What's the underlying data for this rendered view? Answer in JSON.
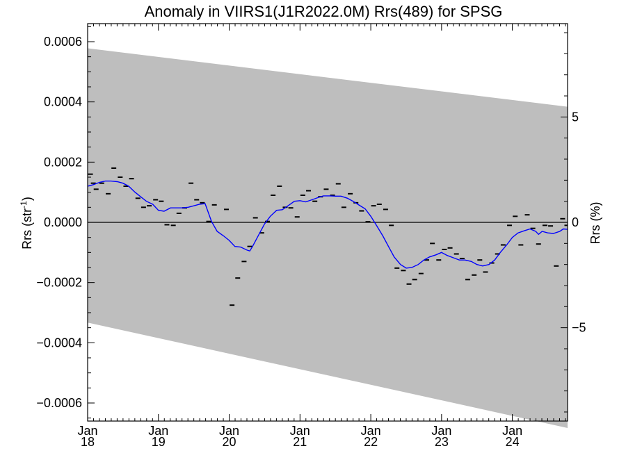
{
  "chart_data": {
    "type": "scatter",
    "title": "Anomaly in VIIRS1(J1R2022.0M) Rrs(489) for SPSG",
    "ylabel_main": "Rrs (str",
    "ylabel_sup": "-1",
    "ylabel_close": ")",
    "ylabel_right": "Rrs (%)",
    "xlim": [
      2018.0,
      2024.78
    ],
    "ylim": [
      -0.00066,
      0.00066
    ],
    "y2lim": [
      -9.43,
      9.43
    ],
    "y_ticks": [
      {
        "value": 0.0006,
        "label": "0.0006"
      },
      {
        "value": 0.0004,
        "label": "0.0004"
      },
      {
        "value": 0.0002,
        "label": "0.0002"
      },
      {
        "value": 0.0,
        "label": "0.0000"
      },
      {
        "value": -0.0002,
        "label": "−0.0002"
      },
      {
        "value": -0.0004,
        "label": "−0.0004"
      },
      {
        "value": -0.0006,
        "label": "−0.0006"
      }
    ],
    "y2_ticks": [
      {
        "value": 5,
        "label": "5"
      },
      {
        "value": 0,
        "label": "0"
      },
      {
        "value": -5,
        "label": "−5"
      }
    ],
    "x_ticks": [
      {
        "value": 2018,
        "month": "Jan",
        "year": "18"
      },
      {
        "value": 2019,
        "month": "Jan",
        "year": "19"
      },
      {
        "value": 2020,
        "month": "Jan",
        "year": "20"
      },
      {
        "value": 2021,
        "month": "Jan",
        "year": "21"
      },
      {
        "value": 2022,
        "month": "Jan",
        "year": "22"
      },
      {
        "value": 2023,
        "month": "Jan",
        "year": "23"
      },
      {
        "value": 2024,
        "month": "Jan",
        "year": "24"
      }
    ],
    "band": {
      "x": [
        2018.0,
        2024.78
      ],
      "upper": [
        0.000578,
        0.000384
      ],
      "lower": [
        -0.000333,
        -0.000683
      ]
    },
    "zero_line": 0.0,
    "series": [
      {
        "type": "points",
        "color": "#000000",
        "points": [
          [
            2018.04,
            0.00016
          ],
          [
            2018.08,
            0.00013
          ],
          [
            2018.12,
            0.00011
          ],
          [
            2018.2,
            0.00013
          ],
          [
            2018.29,
            9.5e-05
          ],
          [
            2018.37,
            0.00018
          ],
          [
            2018.46,
            0.00015
          ],
          [
            2018.54,
            0.00012
          ],
          [
            2018.62,
            0.000145
          ],
          [
            2018.71,
            8e-05
          ],
          [
            2018.79,
            5e-05
          ],
          [
            2018.87,
            5.5e-05
          ],
          [
            2018.96,
            7.5e-05
          ],
          [
            2019.04,
            7e-05
          ],
          [
            2019.12,
            -8e-06
          ],
          [
            2019.21,
            -1e-05
          ],
          [
            2019.29,
            3e-05
          ],
          [
            2019.37,
            4.8e-05
          ],
          [
            2019.46,
            0.00013
          ],
          [
            2019.54,
            7.5e-05
          ],
          [
            2019.62,
            6.5e-05
          ],
          [
            2019.71,
            3e-06
          ],
          [
            2019.79,
            5.8e-05
          ],
          [
            2019.96,
            4.3e-05
          ],
          [
            2020.04,
            -0.000275
          ],
          [
            2020.12,
            -0.000185
          ],
          [
            2020.21,
            -0.00013
          ],
          [
            2020.29,
            -8e-05
          ],
          [
            2020.37,
            1.5e-05
          ],
          [
            2020.46,
            -3.5e-05
          ],
          [
            2020.54,
            3e-06
          ],
          [
            2020.62,
            9e-05
          ],
          [
            2020.71,
            0.00012
          ],
          [
            2020.79,
            5e-05
          ],
          [
            2020.87,
            4.8e-05
          ],
          [
            2020.96,
            1.8e-05
          ],
          [
            2021.04,
            9e-05
          ],
          [
            2021.12,
            0.000105
          ],
          [
            2021.21,
            7e-05
          ],
          [
            2021.29,
            8.5e-05
          ],
          [
            2021.37,
            0.00011
          ],
          [
            2021.46,
            9e-05
          ],
          [
            2021.54,
            0.000128
          ],
          [
            2021.62,
            5e-05
          ],
          [
            2021.71,
            9.5e-05
          ],
          [
            2021.79,
            6.5e-05
          ],
          [
            2021.87,
            3.8e-05
          ],
          [
            2021.96,
            2e-06
          ],
          [
            2022.04,
            5.5e-05
          ],
          [
            2022.12,
            6e-05
          ],
          [
            2022.21,
            4.3e-05
          ],
          [
            2022.29,
            -1e-05
          ],
          [
            2022.37,
            -0.000152
          ],
          [
            2022.46,
            -0.00016
          ],
          [
            2022.54,
            -0.000205
          ],
          [
            2022.62,
            -0.00019
          ],
          [
            2022.71,
            -0.00017
          ],
          [
            2022.79,
            -0.000125
          ],
          [
            2022.87,
            -7e-05
          ],
          [
            2022.96,
            -0.000125
          ],
          [
            2023.04,
            -9e-05
          ],
          [
            2023.12,
            -8.5e-05
          ],
          [
            2023.21,
            -0.000105
          ],
          [
            2023.29,
            -0.00012
          ],
          [
            2023.37,
            -0.00019
          ],
          [
            2023.46,
            -0.000175
          ],
          [
            2023.54,
            -0.000125
          ],
          [
            2023.62,
            -0.000165
          ],
          [
            2023.71,
            -0.000135
          ],
          [
            2023.79,
            -0.000105
          ],
          [
            2023.87,
            -7.5e-05
          ],
          [
            2023.96,
            -1e-05
          ],
          [
            2024.04,
            2e-05
          ],
          [
            2024.12,
            -7.5e-05
          ],
          [
            2024.21,
            2.5e-05
          ],
          [
            2024.29,
            -2e-05
          ],
          [
            2024.37,
            -7.2e-05
          ],
          [
            2024.46,
            -1e-05
          ],
          [
            2024.54,
            -1.2e-05
          ],
          [
            2024.62,
            -0.000145
          ],
          [
            2024.71,
            1.2e-05
          ],
          [
            2024.77,
            -1e-05
          ]
        ]
      },
      {
        "type": "line",
        "color": "#0000ff",
        "points": [
          [
            2018.0,
            0.00012
          ],
          [
            2018.08,
            0.000125
          ],
          [
            2018.17,
            0.000133
          ],
          [
            2018.25,
            0.000137
          ],
          [
            2018.33,
            0.000137
          ],
          [
            2018.42,
            0.000135
          ],
          [
            2018.5,
            0.00013
          ],
          [
            2018.58,
            0.00012
          ],
          [
            2018.67,
            0.0001
          ],
          [
            2018.75,
            8.5e-05
          ],
          [
            2018.83,
            7e-05
          ],
          [
            2018.92,
            6e-05
          ],
          [
            2019.0,
            4e-05
          ],
          [
            2019.08,
            3.7e-05
          ],
          [
            2019.17,
            4.8e-05
          ],
          [
            2019.25,
            4.8e-05
          ],
          [
            2019.33,
            4.8e-05
          ],
          [
            2019.42,
            5e-05
          ],
          [
            2019.5,
            5.5e-05
          ],
          [
            2019.58,
            6e-05
          ],
          [
            2019.66,
            6.2e-05
          ],
          [
            2019.75,
            3e-06
          ],
          [
            2019.83,
            -3e-05
          ],
          [
            2019.92,
            -4.5e-05
          ],
          [
            2020.0,
            -6e-05
          ],
          [
            2020.08,
            -8e-05
          ],
          [
            2020.16,
            -8.2e-05
          ],
          [
            2020.25,
            -9.2e-05
          ],
          [
            2020.29,
            -9.5e-05
          ],
          [
            2020.33,
            -8e-05
          ],
          [
            2020.42,
            -4e-05
          ],
          [
            2020.5,
            -5e-06
          ],
          [
            2020.58,
            2e-05
          ],
          [
            2020.67,
            4e-05
          ],
          [
            2020.75,
            4.2e-05
          ],
          [
            2020.83,
            5.5e-05
          ],
          [
            2020.92,
            7e-05
          ],
          [
            2021.0,
            7.2e-05
          ],
          [
            2021.08,
            6.8e-05
          ],
          [
            2021.17,
            7.5e-05
          ],
          [
            2021.25,
            8.2e-05
          ],
          [
            2021.33,
            8.8e-05
          ],
          [
            2021.42,
            8.8e-05
          ],
          [
            2021.5,
            8.7e-05
          ],
          [
            2021.58,
            8.7e-05
          ],
          [
            2021.67,
            8e-05
          ],
          [
            2021.75,
            7e-05
          ],
          [
            2021.83,
            5.8e-05
          ],
          [
            2021.92,
            4.5e-05
          ],
          [
            2022.0,
            2e-05
          ],
          [
            2022.08,
            -1e-05
          ],
          [
            2022.17,
            -4.5e-05
          ],
          [
            2022.25,
            -8e-05
          ],
          [
            2022.33,
            -0.000115
          ],
          [
            2022.42,
            -0.00014
          ],
          [
            2022.5,
            -0.000152
          ],
          [
            2022.58,
            -0.00015
          ],
          [
            2022.67,
            -0.00014
          ],
          [
            2022.75,
            -0.000125
          ],
          [
            2022.83,
            -0.000115
          ],
          [
            2022.92,
            -0.000108
          ],
          [
            2023.0,
            -0.0001
          ],
          [
            2023.08,
            -0.00011
          ],
          [
            2023.17,
            -0.000118
          ],
          [
            2023.25,
            -0.000125
          ],
          [
            2023.33,
            -0.000125
          ],
          [
            2023.42,
            -0.00013
          ],
          [
            2023.5,
            -0.00014
          ],
          [
            2023.58,
            -0.000145
          ],
          [
            2023.67,
            -0.00014
          ],
          [
            2023.75,
            -0.000125
          ],
          [
            2023.83,
            -0.0001
          ],
          [
            2023.92,
            -7.5e-05
          ],
          [
            2024.0,
            -5e-05
          ],
          [
            2024.08,
            -3.5e-05
          ],
          [
            2024.17,
            -2.8e-05
          ],
          [
            2024.25,
            -2.2e-05
          ],
          [
            2024.33,
            -3e-05
          ],
          [
            2024.37,
            -4e-05
          ],
          [
            2024.42,
            -3e-05
          ],
          [
            2024.5,
            -3.5e-05
          ],
          [
            2024.58,
            -3.7e-05
          ],
          [
            2024.67,
            -3e-05
          ],
          [
            2024.72,
            -2.2e-05
          ],
          [
            2024.78,
            -2.3e-05
          ]
        ]
      }
    ]
  }
}
